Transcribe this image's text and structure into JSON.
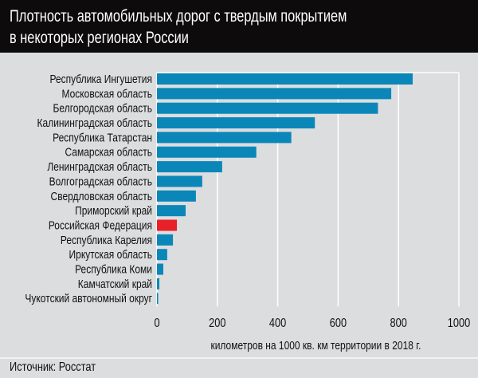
{
  "chart_data": {
    "type": "bar",
    "orientation": "horizontal",
    "title": "Плотность автомобильных дорог с твердым покрытием в некоторых регионах России",
    "title_lines": [
      "Плотность автомобильных дорог с твердым покрытием",
      "в некоторых регионах России"
    ],
    "xlabel": "километров на 1000 кв. км территории в 2018 г.",
    "xlim": [
      0,
      1000
    ],
    "xticks": [
      "0",
      "200",
      "400",
      "600",
      "800",
      "1000"
    ],
    "grid": true,
    "categories": [
      "Республика Ингушетия",
      "Московская область",
      "Белгородская область",
      "Калининградская область",
      "Республика Татарстан",
      "Самарская область",
      "Ленинградская область",
      "Волгоградская область",
      "Свердловская область",
      "Приморский край",
      "Российская Федерация",
      "Республика Карелия",
      "Иркутская область",
      "Республика Коми",
      "Камчатский край",
      "Чукотский автономный округ"
    ],
    "values": [
      847,
      776,
      732,
      523,
      445,
      329,
      216,
      150,
      129,
      95,
      66,
      53,
      34,
      21,
      8,
      4
    ],
    "highlight": "Российская Федерация",
    "colors": {
      "bar": "#0a87b8",
      "highlight": "#e8202a",
      "grid": "#ffffff",
      "header": "#0d0b0b",
      "background": "#dcdddf"
    }
  },
  "source": "Источник: Росстат"
}
